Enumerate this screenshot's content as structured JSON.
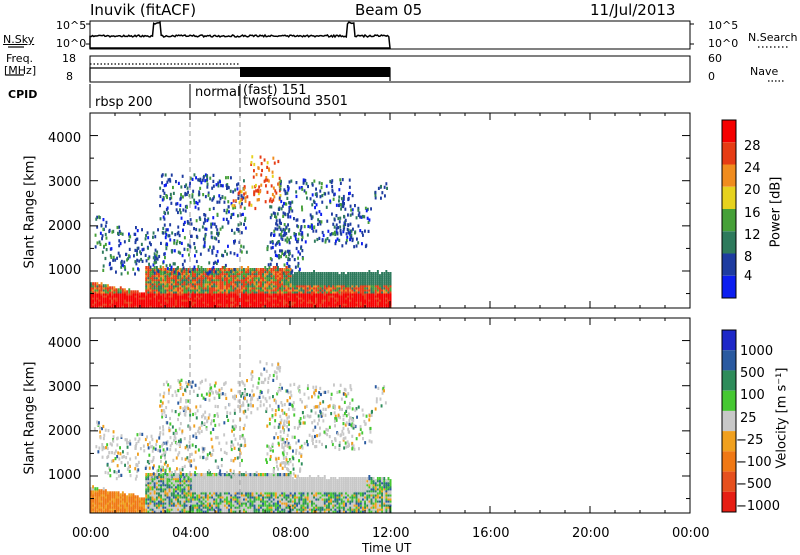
{
  "header": {
    "title": "Inuvik (fitACF)",
    "beam": "Beam 05",
    "date": "11/Jul/2013"
  },
  "side_labels": {
    "nsky": "N.Sky",
    "freq_line1": "Freq.",
    "freq_line2": "[MHz]",
    "cpid": "CPID",
    "nsearch": "N.Search",
    "nave": "Nave"
  },
  "nsky_axis": {
    "top": "10^5",
    "bottom": "10^0",
    "right_top": "10^5",
    "right_bottom": "10^0"
  },
  "freq_axis": {
    "left_top": "18",
    "left_bottom": "8",
    "right_top": "60",
    "right_bottom": "0"
  },
  "cpid_labels": [
    "rbsp 200",
    "normal",
    "(fast) 151",
    "twofsound 3501"
  ],
  "chart_data": [
    {
      "type": "heatmap",
      "name": "power",
      "xlabel": "Time UT",
      "ylabel": "Slant Range [km]",
      "xlim": [
        0,
        24
      ],
      "ylim": [
        180,
        4500
      ],
      "x_ticks": [
        "00:00",
        "04:00",
        "08:00",
        "12:00",
        "16:00",
        "20:00",
        "00:00"
      ],
      "y_ticks": [
        1000,
        2000,
        3000,
        4000
      ],
      "data_extent_hours": [
        0,
        12
      ],
      "colorbar": {
        "label": "Power [dB]",
        "ticks": [
          "4",
          "8",
          "12",
          "16",
          "20",
          "24",
          "28"
        ],
        "colors": [
          "#0c1ef0",
          "#1e3ca0",
          "#2e7a5c",
          "#46a038",
          "#e6d21e",
          "#f08c1e",
          "#e63c14",
          "#f50000"
        ]
      }
    },
    {
      "type": "heatmap",
      "name": "velocity",
      "xlabel": "Time UT",
      "ylabel": "Slant Range [km]",
      "xlim": [
        0,
        24
      ],
      "ylim": [
        180,
        4500
      ],
      "x_ticks": [
        "00:00",
        "04:00",
        "08:00",
        "12:00",
        "16:00",
        "20:00",
        "00:00"
      ],
      "y_ticks": [
        1000,
        2000,
        3000,
        4000
      ],
      "data_extent_hours": [
        0,
        12
      ],
      "colorbar": {
        "label": "Velocity [m s⁻¹]",
        "ticks": [
          "1000",
          "500",
          "100",
          "25",
          "−25",
          "−100",
          "−500",
          "−1000"
        ],
        "colors": [
          "#1e28c8",
          "#2a5aa0",
          "#2e8c5a",
          "#46c832",
          "#c8c8c8",
          "#f0a01e",
          "#f07814",
          "#e6501e",
          "#e61e14"
        ]
      }
    }
  ],
  "x_tick_labels": [
    "00:00",
    "04:00",
    "08:00",
    "12:00",
    "16:00",
    "20:00",
    "00:00"
  ],
  "xlabel": "Time UT",
  "ylabel_top": "Slant Range [km]",
  "ylabel_bottom": "Slant Range [km]",
  "y_tick_labels_top": [
    "4000",
    "3000",
    "2000",
    "1000"
  ],
  "y_tick_labels_bottom": [
    "4000",
    "3000",
    "2000",
    "1000"
  ],
  "cb_power": {
    "label": "Power [dB]",
    "ticks": [
      "28",
      "24",
      "20",
      "16",
      "12",
      "8",
      "4"
    ]
  },
  "cb_vel": {
    "label": "Velocity [m s⁻¹]",
    "ticks": [
      "1000",
      "500",
      "100",
      "25",
      "−25",
      "−100",
      "−500",
      "−1000"
    ]
  }
}
